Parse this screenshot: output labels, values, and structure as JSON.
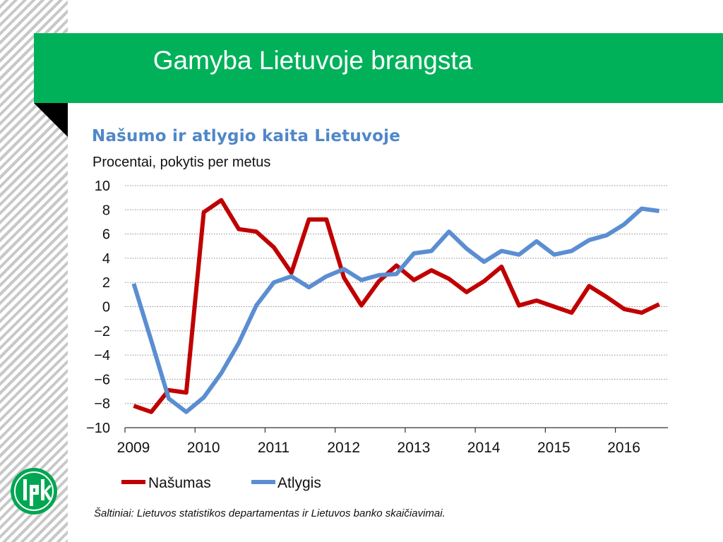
{
  "slide": {
    "title": "Gamyba Lietuvoje brangsta"
  },
  "chart_data": {
    "type": "line",
    "title": "Našumo ir atlygio kaita Lietuvoje",
    "subtitle": "Procentai, pokytis per metus",
    "x_ticks": [
      "2009",
      "2010",
      "2011",
      "2012",
      "2013",
      "2014",
      "2015",
      "2016"
    ],
    "xlim": [
      2009.0,
      2016.75
    ],
    "ylim": [
      -10,
      10
    ],
    "y_ticks": [
      10,
      8,
      6,
      4,
      2,
      0,
      -2,
      -4,
      -6,
      -8,
      -10
    ],
    "y_tick_labels": [
      "10",
      "8",
      "6",
      "4",
      "2",
      "0",
      "−2",
      "−4",
      "−6",
      "−8",
      "−10"
    ],
    "grid": true,
    "legend_position": "bottom-left",
    "series": [
      {
        "name": "Našumas",
        "color": "#c00000",
        "points": [
          [
            2009.125,
            -8.2
          ],
          [
            2009.375,
            -8.7
          ],
          [
            2009.625,
            -6.9
          ],
          [
            2009.875,
            -7.1
          ],
          [
            2010.125,
            7.8
          ],
          [
            2010.375,
            8.8
          ],
          [
            2010.625,
            6.4
          ],
          [
            2010.875,
            6.2
          ],
          [
            2011.125,
            4.9
          ],
          [
            2011.375,
            2.8
          ],
          [
            2011.625,
            7.2
          ],
          [
            2011.875,
            7.2
          ],
          [
            2012.125,
            2.4
          ],
          [
            2012.375,
            0.1
          ],
          [
            2012.625,
            2.1
          ],
          [
            2012.875,
            3.4
          ],
          [
            2013.125,
            2.2
          ],
          [
            2013.375,
            3.0
          ],
          [
            2013.625,
            2.3
          ],
          [
            2013.875,
            1.2
          ],
          [
            2014.125,
            2.1
          ],
          [
            2014.375,
            3.3
          ],
          [
            2014.625,
            0.1
          ],
          [
            2014.875,
            0.5
          ],
          [
            2015.125,
            0.0
          ],
          [
            2015.375,
            -0.5
          ],
          [
            2015.625,
            1.7
          ],
          [
            2015.875,
            0.8
          ],
          [
            2016.125,
            -0.2
          ],
          [
            2016.375,
            -0.5
          ],
          [
            2016.625,
            0.2
          ]
        ]
      },
      {
        "name": "Atlygis",
        "color": "#5b8ed1",
        "points": [
          [
            2009.125,
            1.9
          ],
          [
            2009.375,
            -2.8
          ],
          [
            2009.625,
            -7.6
          ],
          [
            2009.875,
            -8.7
          ],
          [
            2010.125,
            -7.5
          ],
          [
            2010.375,
            -5.5
          ],
          [
            2010.625,
            -3.0
          ],
          [
            2010.875,
            0.1
          ],
          [
            2011.125,
            2.0
          ],
          [
            2011.375,
            2.5
          ],
          [
            2011.625,
            1.6
          ],
          [
            2011.875,
            2.5
          ],
          [
            2012.125,
            3.1
          ],
          [
            2012.375,
            2.2
          ],
          [
            2012.625,
            2.6
          ],
          [
            2012.875,
            2.7
          ],
          [
            2013.125,
            4.4
          ],
          [
            2013.375,
            4.6
          ],
          [
            2013.625,
            6.2
          ],
          [
            2013.875,
            4.8
          ],
          [
            2014.125,
            3.7
          ],
          [
            2014.375,
            4.6
          ],
          [
            2014.625,
            4.3
          ],
          [
            2014.875,
            5.4
          ],
          [
            2015.125,
            4.3
          ],
          [
            2015.375,
            4.6
          ],
          [
            2015.625,
            5.5
          ],
          [
            2015.875,
            5.9
          ],
          [
            2016.125,
            6.8
          ],
          [
            2016.375,
            8.1
          ],
          [
            2016.625,
            7.9
          ]
        ]
      }
    ],
    "source": "Šaltiniai: Lietuvos statistikos departamentas ir Lietuvos banko skaičiavimai."
  }
}
